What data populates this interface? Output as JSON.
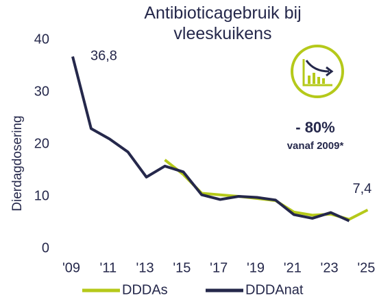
{
  "chart_data": {
    "type": "line",
    "title": "Antibioticagebruik bij vleeskuikens",
    "y_label": "Dierdagdosering",
    "categories": [
      "'09",
      null,
      "'11",
      null,
      "'13",
      null,
      "'15",
      null,
      "'17",
      null,
      "'19",
      null,
      "'21",
      null,
      "'23",
      null,
      "'25"
    ],
    "series": [
      {
        "name": "DDDAs",
        "color": "#b5c91a",
        "values": [
          null,
          null,
          null,
          null,
          null,
          17,
          14.2,
          10.6,
          10.3,
          10,
          9.6,
          9.2,
          7,
          6.4,
          6.6,
          5.6,
          7.4
        ],
        "value_labels": [
          null,
          null,
          null,
          null,
          null,
          null,
          null,
          null,
          null,
          null,
          null,
          null,
          null,
          null,
          null,
          null,
          "7,4"
        ]
      },
      {
        "name": "DDDAnat",
        "color": "#25284b",
        "values": [
          36.8,
          23,
          21,
          18.5,
          13.7,
          15.8,
          14.7,
          10.3,
          9.4,
          10,
          9.8,
          9.3,
          6.5,
          5.8,
          6.9,
          5.3,
          null
        ],
        "value_labels": [
          "36,8",
          null,
          null,
          null,
          null,
          null,
          null,
          null,
          null,
          null,
          null,
          null,
          null,
          null,
          null,
          null,
          null
        ]
      }
    ],
    "ylim": [
      0,
      40
    ],
    "yticks": [
      0,
      10,
      20,
      30,
      40
    ],
    "annotations": [
      "- 80%",
      "vanaf 2009*"
    ],
    "legend": "bottom"
  }
}
